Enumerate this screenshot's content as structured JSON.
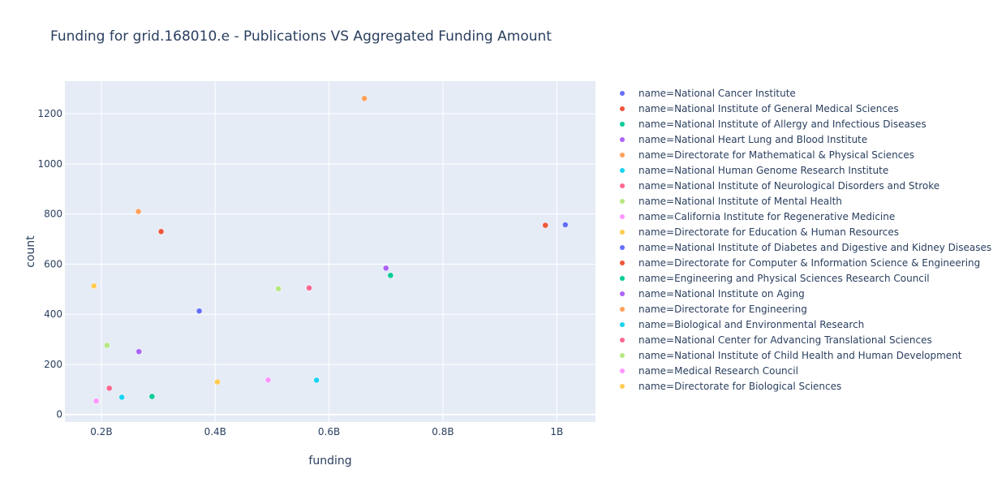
{
  "chart_data": {
    "type": "scatter",
    "title": "Funding for grid.168010.e - Publications VS Aggregated Funding Amount",
    "xlabel": "funding",
    "ylabel": "count",
    "xlim": [
      136000000,
      1068000000
    ],
    "ylim": [
      -30,
      1330
    ],
    "xticks": [
      {
        "value": 200000000,
        "label": "0.2B"
      },
      {
        "value": 400000000,
        "label": "0.4B"
      },
      {
        "value": 600000000,
        "label": "0.6B"
      },
      {
        "value": 800000000,
        "label": "0.8B"
      },
      {
        "value": 1000000000,
        "label": "1B"
      }
    ],
    "yticks": [
      {
        "value": 0,
        "label": "0"
      },
      {
        "value": 200,
        "label": "200"
      },
      {
        "value": 400,
        "label": "400"
      },
      {
        "value": 600,
        "label": "600"
      },
      {
        "value": 800,
        "label": "800"
      },
      {
        "value": 1000,
        "label": "1000"
      },
      {
        "value": 1200,
        "label": "1200"
      }
    ],
    "grid": true,
    "legend_position": "right",
    "series": [
      {
        "name": "name=National Cancer Institute",
        "color": "#636efa",
        "x": [
          372000000
        ],
        "y": [
          413
        ]
      },
      {
        "name": "name=National Institute of General Medical Sciences",
        "color": "#EF553B",
        "x": [
          980000000
        ],
        "y": [
          755
        ]
      },
      {
        "name": "name=National Institute of Allergy and Infectious Diseases",
        "color": "#00cc96",
        "x": [
          708000000
        ],
        "y": [
          555
        ]
      },
      {
        "name": "name=National Heart Lung and Blood Institute",
        "color": "#ab63fa",
        "x": [
          700000000
        ],
        "y": [
          584
        ]
      },
      {
        "name": "name=Directorate for Mathematical & Physical Sciences",
        "color": "#FFA15A",
        "x": [
          662000000
        ],
        "y": [
          1261
        ]
      },
      {
        "name": "name=National Human Genome Research Institute",
        "color": "#19d3f3",
        "x": [
          578000000
        ],
        "y": [
          137
        ]
      },
      {
        "name": "name=National Institute of Neurological Disorders and Stroke",
        "color": "#FF6692",
        "x": [
          565000000
        ],
        "y": [
          505
        ]
      },
      {
        "name": "name=National Institute of Mental Health",
        "color": "#B6E880",
        "x": [
          511000000
        ],
        "y": [
          502
        ]
      },
      {
        "name": "name=California Institute for Regenerative Medicine",
        "color": "#FF97FF",
        "x": [
          493000000
        ],
        "y": [
          138
        ]
      },
      {
        "name": "name=Directorate for Education & Human Resources",
        "color": "#FECB52",
        "x": [
          404000000
        ],
        "y": [
          130
        ]
      },
      {
        "name": "name=National Institute of Diabetes and Digestive and Kidney Diseases",
        "color": "#636efa",
        "x": [
          1015000000
        ],
        "y": [
          757
        ]
      },
      {
        "name": "name=Directorate for Computer & Information Science & Engineering",
        "color": "#EF553B",
        "x": [
          305000000
        ],
        "y": [
          730
        ]
      },
      {
        "name": "name=Engineering and Physical Sciences Research Council",
        "color": "#00cc96",
        "x": [
          289000000
        ],
        "y": [
          72
        ]
      },
      {
        "name": "name=National Institute on Aging",
        "color": "#ab63fa",
        "x": [
          266000000
        ],
        "y": [
          251
        ]
      },
      {
        "name": "name=Directorate for Engineering",
        "color": "#FFA15A",
        "x": [
          265000000
        ],
        "y": [
          810
        ]
      },
      {
        "name": "name=Biological and Environmental Research",
        "color": "#19d3f3",
        "x": [
          236000000
        ],
        "y": [
          69
        ]
      },
      {
        "name": "name=National Center for Advancing Translational Sciences",
        "color": "#FF6692",
        "x": [
          214000000
        ],
        "y": [
          105
        ]
      },
      {
        "name": "name=National Institute of Child Health and Human Development",
        "color": "#B6E880",
        "x": [
          210000000
        ],
        "y": [
          276
        ]
      },
      {
        "name": "name=Medical Research Council",
        "color": "#FF97FF",
        "x": [
          191000000
        ],
        "y": [
          54
        ]
      },
      {
        "name": "name=Directorate for Biological Sciences",
        "color": "#FECB52",
        "x": [
          187000000
        ],
        "y": [
          513
        ]
      }
    ]
  }
}
